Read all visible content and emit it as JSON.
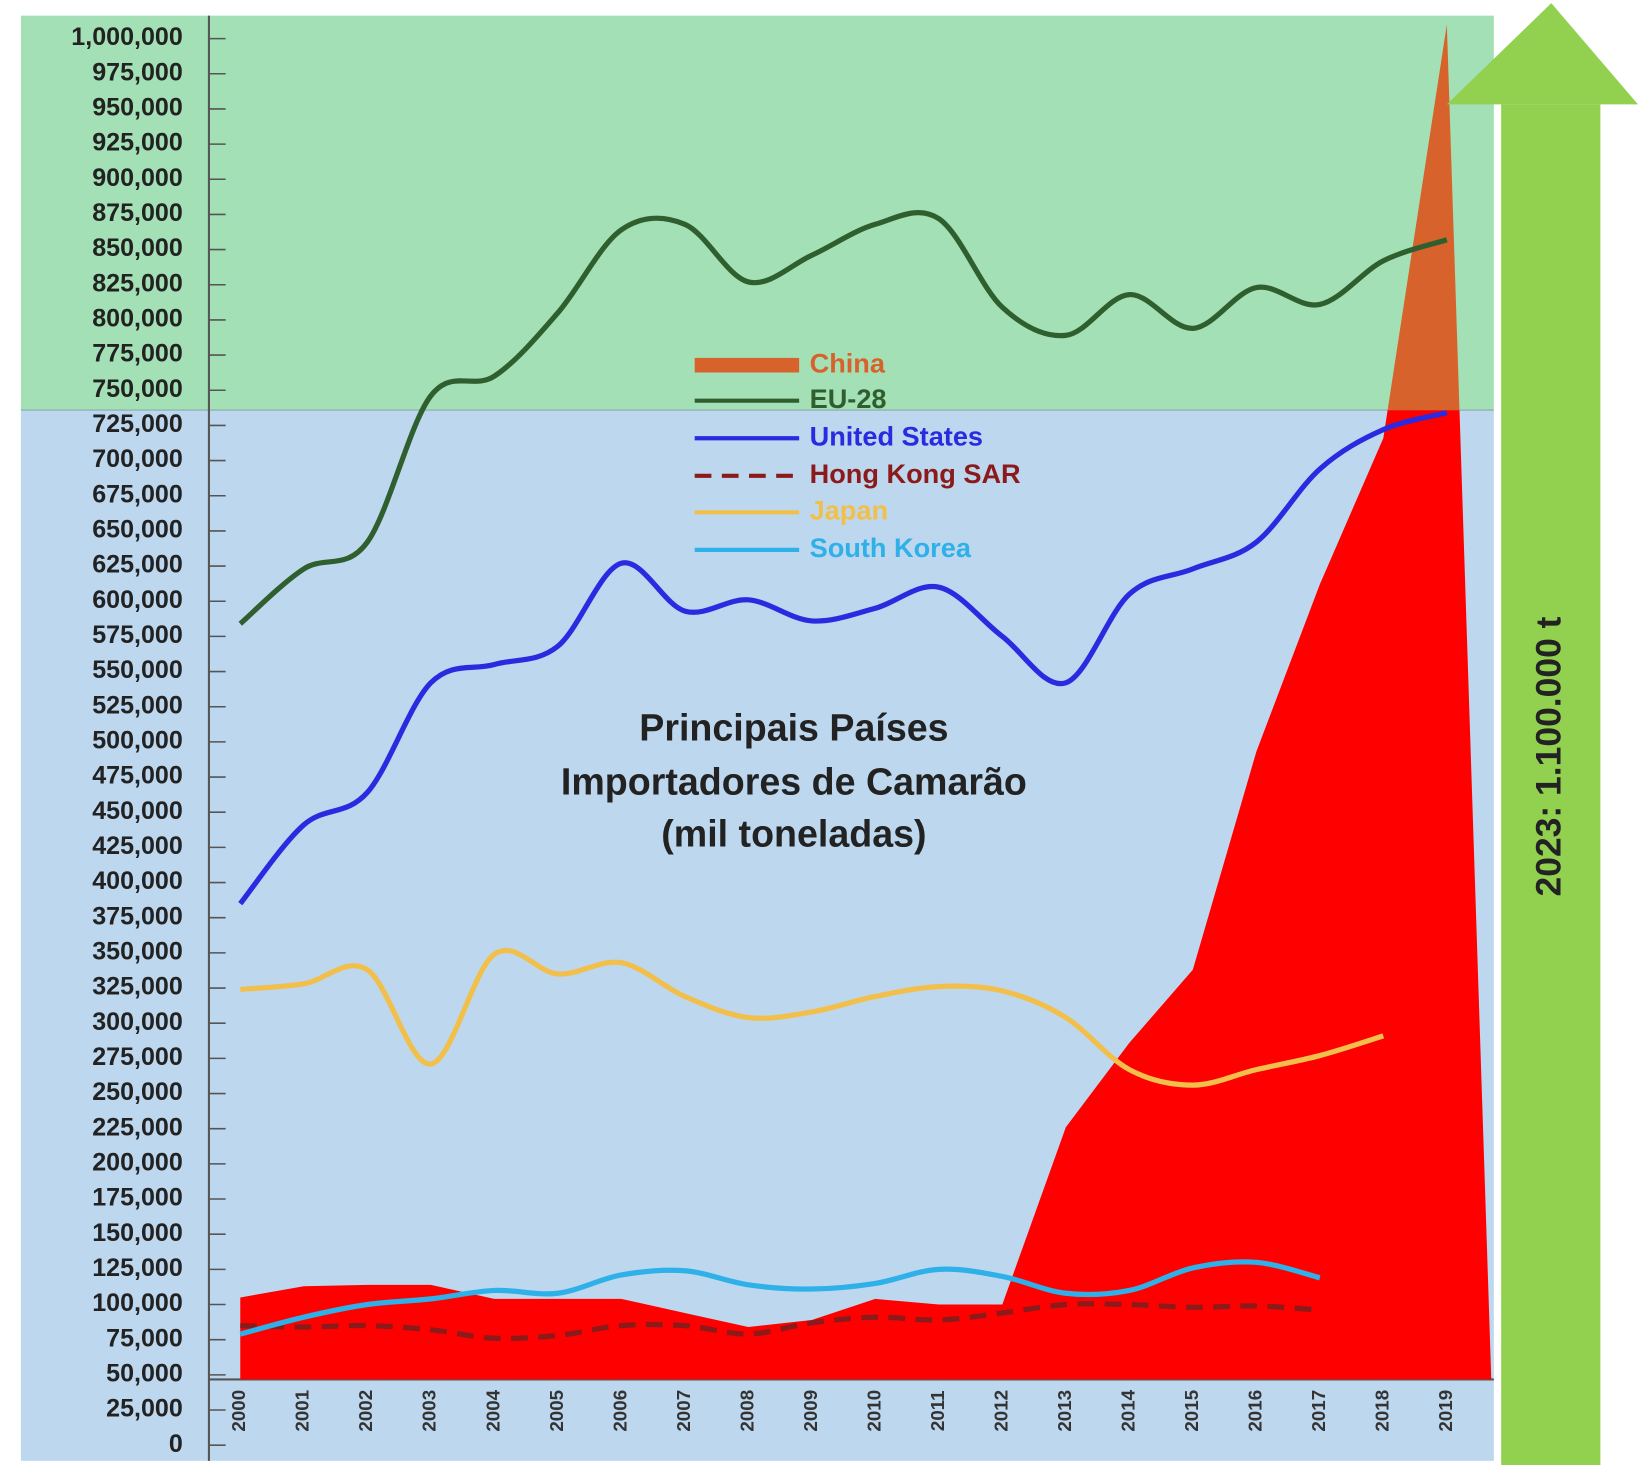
{
  "chart_data": {
    "type": "line",
    "title": "Principais Países Importadores de Camarão (mil toneladas)",
    "title_lines": [
      "Principais Países",
      "Importadores de Camarão",
      "(mil toneladas)"
    ],
    "annotation": "2023: 1.100.000 t",
    "categories": [
      "2000",
      "2001",
      "2002",
      "2003",
      "2004",
      "2005",
      "2006",
      "2007",
      "2008",
      "2009",
      "2010",
      "2011",
      "2012",
      "2013",
      "2014",
      "2015",
      "2016",
      "2017",
      "2018",
      "2019"
    ],
    "ylim": [
      0,
      1000000
    ],
    "yticks": [
      0,
      {
        "value": 25000,
        "label": "25,000"
      },
      {
        "value": 50000,
        "label": "50,000"
      },
      {
        "value": 75000,
        "label": "75,000"
      },
      {
        "value": 100000,
        "label": "100,000"
      },
      {
        "value": 125000,
        "label": "125,000"
      },
      {
        "value": 150000,
        "label": "150,000"
      },
      {
        "value": 175000,
        "label": "175,000"
      },
      {
        "value": 200000,
        "label": "200,000"
      },
      {
        "value": 225000,
        "label": "225,000"
      },
      {
        "value": 250000,
        "label": "250,000"
      },
      {
        "value": 275000,
        "label": "275,000"
      },
      {
        "value": 300000,
        "label": "300,000"
      },
      {
        "value": 325000,
        "label": "325,000"
      },
      {
        "value": 350000,
        "label": "350,000"
      },
      {
        "value": 375000,
        "label": "375,000"
      },
      {
        "value": 400000,
        "label": "400,000"
      },
      {
        "value": 425000,
        "label": "425,000"
      },
      {
        "value": 450000,
        "label": "450,000"
      },
      {
        "value": 475000,
        "label": "475,000"
      },
      {
        "value": 500000,
        "label": "500,000"
      },
      {
        "value": 525000,
        "label": "525,000"
      },
      {
        "value": 550000,
        "label": "550,000"
      },
      {
        "value": 575000,
        "label": "575,000"
      },
      {
        "value": 600000,
        "label": "600,000"
      },
      {
        "value": 625000,
        "label": "625,000"
      },
      {
        "value": 650000,
        "label": "650,000"
      },
      {
        "value": 675000,
        "label": "675,000"
      },
      {
        "value": 700000,
        "label": "700,000"
      },
      {
        "value": 725000,
        "label": "725,000"
      },
      {
        "value": 750000,
        "label": "750,000"
      },
      {
        "value": 775000,
        "label": "775,000"
      },
      {
        "value": 800000,
        "label": "800,000"
      },
      {
        "value": 825000,
        "label": "825,000"
      },
      {
        "value": 850000,
        "label": "850,000"
      },
      {
        "value": 875000,
        "label": "875,000"
      },
      {
        "value": 900000,
        "label": "900,000"
      },
      {
        "value": 925000,
        "label": "925,000"
      },
      {
        "value": 950000,
        "label": "950,000"
      },
      {
        "value": 975000,
        "label": "975,000"
      },
      {
        "value": 1000000,
        "label": "1,000,000"
      }
    ],
    "series": [
      {
        "name": "China",
        "kind": "area",
        "color": "#d8622c",
        "values": [
          105000,
          113000,
          114000,
          114000,
          104000,
          104000,
          104000,
          94000,
          84000,
          89000,
          104000,
          100000,
          100000,
          226000,
          286000,
          338000,
          493000,
          612000,
          716000,
          1010000
        ]
      },
      {
        "name": "EU-28",
        "color": "#2f5f2f",
        "values": [
          584000,
          623000,
          642000,
          746000,
          760000,
          805000,
          864000,
          868000,
          827000,
          846000,
          868000,
          872000,
          809000,
          789000,
          818000,
          794000,
          823000,
          811000,
          842000,
          857000
        ]
      },
      {
        "name": "United States",
        "color": "#2a2ae0",
        "values": [
          385000,
          441000,
          464000,
          542000,
          555000,
          568000,
          627000,
          593000,
          601000,
          586000,
          595000,
          610000,
          575000,
          542000,
          605000,
          623000,
          642000,
          694000,
          722000,
          734000
        ]
      },
      {
        "name": "Hong Kong SAR",
        "color": "#8b1a1a",
        "dashed": true,
        "values": [
          85000,
          84000,
          85000,
          82000,
          76000,
          78000,
          85000,
          85000,
          79000,
          87000,
          91000,
          89000,
          94000,
          100000,
          100000,
          98000,
          99000,
          96000,
          null,
          null
        ]
      },
      {
        "name": "Japan",
        "color": "#f2c04a",
        "values": [
          324000,
          328000,
          338000,
          271000,
          349000,
          335000,
          343000,
          319000,
          304000,
          308000,
          319000,
          326000,
          323000,
          304000,
          267000,
          256000,
          267000,
          277000,
          291000,
          null
        ]
      },
      {
        "name": "South Korea",
        "color": "#2eb0e8",
        "values": [
          79000,
          91000,
          100000,
          104000,
          110000,
          108000,
          121000,
          124000,
          114000,
          111000,
          115000,
          125000,
          120000,
          108000,
          110000,
          126000,
          130000,
          119000,
          null,
          null
        ]
      }
    ]
  }
}
